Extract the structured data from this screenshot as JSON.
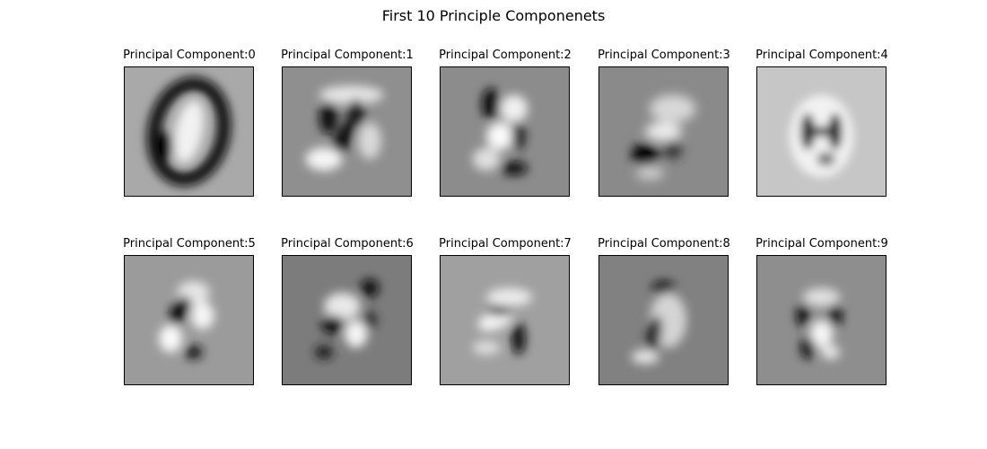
{
  "figure": {
    "title": "First 10 Principle Componenets"
  },
  "panels": [
    {
      "title": "Principal Component:0",
      "background": "#a9a9a9"
    },
    {
      "title": "Principal Component:1",
      "background": "#8f8f8f"
    },
    {
      "title": "Principal Component:2",
      "background": "#8c8c8c"
    },
    {
      "title": "Principal Component:3",
      "background": "#8a8a8a"
    },
    {
      "title": "Principal Component:4",
      "background": "#c6c6c6"
    },
    {
      "title": "Principal Component:5",
      "background": "#9b9b9b"
    },
    {
      "title": "Principal Component:6",
      "background": "#7c7c7c"
    },
    {
      "title": "Principal Component:7",
      "background": "#a0a0a0"
    },
    {
      "title": "Principal Component:8",
      "background": "#818181"
    },
    {
      "title": "Principal Component:9",
      "background": "#8e8e8e"
    }
  ]
}
